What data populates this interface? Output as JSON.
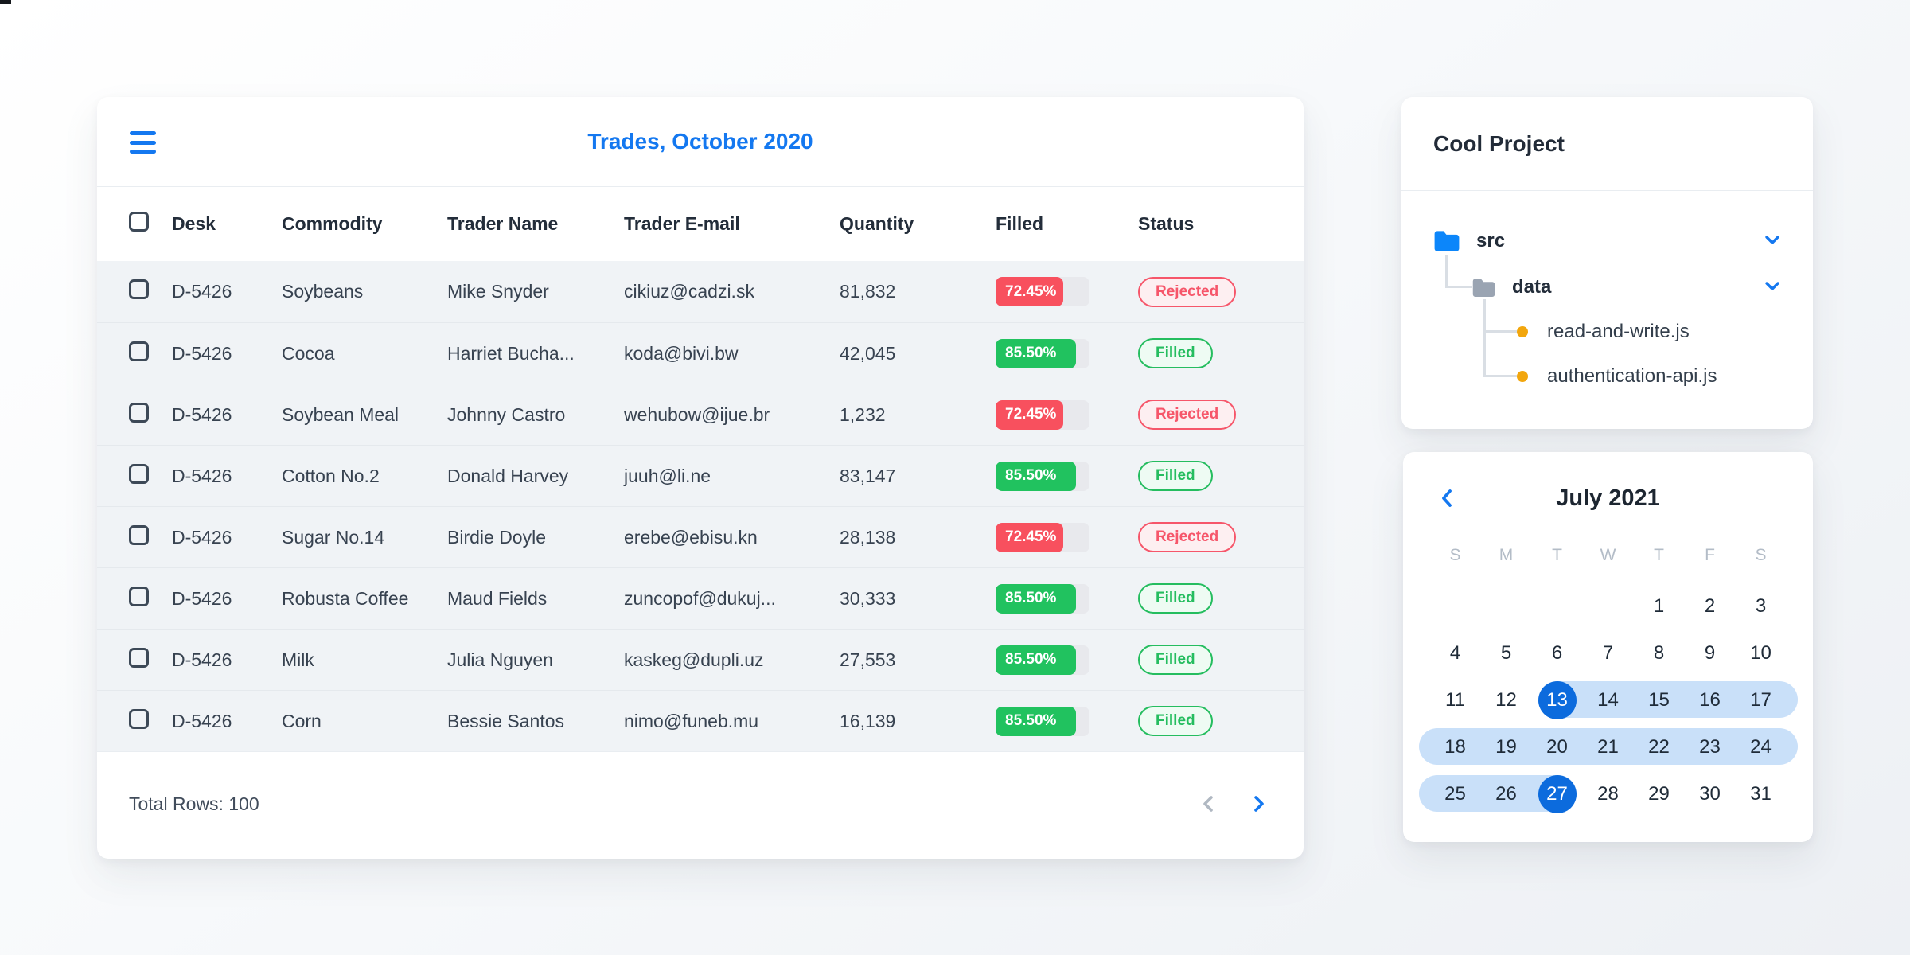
{
  "artifact": {
    "present": true
  },
  "colors": {
    "accent_blue": "#1478f0",
    "folder_blue": "#0c86fa",
    "folder_gray": "#9aa4b2",
    "file_dot_orange": "#f2a60d",
    "bar_red": "#f8505e",
    "bar_green": "#21c25f",
    "badge_rejected_text": "#f6566a",
    "badge_rejected_bg": "#fdeff1",
    "badge_filled_text": "#25bd5f",
    "badge_filled_bg": "#eefbf3",
    "progress_track": "#e8e9ed",
    "row_bg": "#f0f3f6",
    "range_band_blue": "#c9e0f9",
    "selected_day_blue": "#0c6bdd",
    "disabled_chevron_gray": "#b0b8c2"
  },
  "trades_card": {
    "title": "Trades, October 2020",
    "menu_icon": "hamburger-menu",
    "columns": [
      "Desk",
      "Commodity",
      "Trader Name",
      "Trader E-mail",
      "Quantity",
      "Filled",
      "Status"
    ],
    "rows": [
      {
        "desk": "D-5426",
        "commodity": "Soybeans",
        "trader": "Mike Snyder",
        "email": "cikiuz@cadzi.sk",
        "quantity": "81,832",
        "filled_label": "72.45%",
        "filled_value": 72.45,
        "status": "Rejected"
      },
      {
        "desk": "D-5426",
        "commodity": "Cocoa",
        "trader": "Harriet Bucha...",
        "email": "koda@bivi.bw",
        "quantity": "42,045",
        "filled_label": "85.50%",
        "filled_value": 85.5,
        "status": "Filled"
      },
      {
        "desk": "D-5426",
        "commodity": "Soybean Meal",
        "trader": "Johnny Castro",
        "email": "wehubow@ijue.br",
        "quantity": "1,232",
        "filled_label": "72.45%",
        "filled_value": 72.45,
        "status": "Rejected"
      },
      {
        "desk": "D-5426",
        "commodity": "Cotton No.2",
        "trader": "Donald Harvey",
        "email": "juuh@li.ne",
        "quantity": "83,147",
        "filled_label": "85.50%",
        "filled_value": 85.5,
        "status": "Filled"
      },
      {
        "desk": "D-5426",
        "commodity": "Sugar No.14",
        "trader": "Birdie Doyle",
        "email": "erebe@ebisu.kn",
        "quantity": "28,138",
        "filled_label": "72.45%",
        "filled_value": 72.45,
        "status": "Rejected"
      },
      {
        "desk": "D-5426",
        "commodity": "Robusta Coffee",
        "trader": "Maud Fields",
        "email": "zuncopof@dukuj...",
        "quantity": "30,333",
        "filled_label": "85.50%",
        "filled_value": 85.5,
        "status": "Filled"
      },
      {
        "desk": "D-5426",
        "commodity": "Milk",
        "trader": "Julia Nguyen",
        "email": "kaskeg@dupli.uz",
        "quantity": "27,553",
        "filled_label": "85.50%",
        "filled_value": 85.5,
        "status": "Filled"
      },
      {
        "desk": "D-5426",
        "commodity": "Corn",
        "trader": "Bessie Santos",
        "email": "nimo@funeb.mu",
        "quantity": "16,139",
        "filled_label": "85.50%",
        "filled_value": 85.5,
        "status": "Filled"
      }
    ],
    "footer": {
      "total_label": "Total Rows: 100",
      "prev_enabled": false,
      "next_enabled": true
    }
  },
  "project_card": {
    "title": "Cool Project",
    "tree": {
      "root_folder": {
        "label": "src",
        "expanded": true,
        "icon": "folder-blue"
      },
      "sub_folder": {
        "label": "data",
        "expanded": true,
        "icon": "folder-gray"
      },
      "files": [
        {
          "label": "read-and-write.js"
        },
        {
          "label": "authentication-api.js"
        }
      ]
    }
  },
  "calendar_card": {
    "title": "July 2021",
    "nav": {
      "prev_icon": "chevron-left"
    },
    "weekdays": [
      "S",
      "M",
      "T",
      "W",
      "T",
      "F",
      "S"
    ],
    "weeks": [
      [
        null,
        null,
        null,
        null,
        1,
        2,
        3
      ],
      [
        4,
        5,
        6,
        7,
        8,
        9,
        10
      ],
      [
        11,
        12,
        13,
        14,
        15,
        16,
        17
      ],
      [
        18,
        19,
        20,
        21,
        22,
        23,
        24
      ],
      [
        25,
        26,
        27,
        28,
        29,
        30,
        31
      ]
    ],
    "range": {
      "start": 13,
      "end": 27
    }
  }
}
